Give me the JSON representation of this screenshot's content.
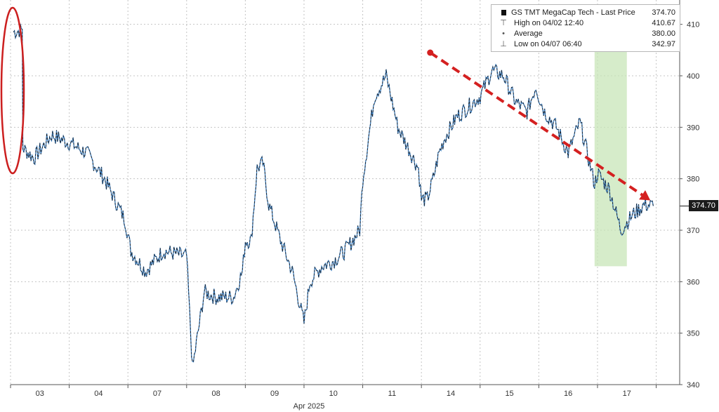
{
  "chart_data": {
    "type": "line",
    "title": "",
    "xlabel": "Apr 2025",
    "ylabel": "",
    "ylim": [
      340,
      412
    ],
    "y_ticks": [
      340,
      350,
      360,
      370,
      380,
      390,
      400,
      410
    ],
    "x_ticks": [
      "03",
      "04",
      "07",
      "08",
      "09",
      "10",
      "11",
      "14",
      "15",
      "16",
      "17"
    ],
    "grid": true,
    "legend_position": "top-right",
    "last_price_label": "374.70",
    "series": [
      {
        "name": "GS TMT MegaCap Tech - Last Price",
        "color": "#1a1a1a",
        "x": [
          0.05,
          0.2,
          0.21,
          0.4,
          0.7,
          1.0,
          1.3,
          1.6,
          1.95,
          2.0,
          2.05,
          2.3,
          2.6,
          2.95,
          3.0,
          3.1,
          3.3,
          3.5,
          3.8,
          3.95,
          4.0,
          4.1,
          4.2,
          4.3,
          4.4,
          4.6,
          4.8,
          5.0,
          5.1,
          5.3,
          5.5,
          5.7,
          5.95,
          6.0,
          6.2,
          6.4,
          6.6,
          6.95,
          7.0,
          7.1,
          7.2,
          7.3,
          7.4,
          7.6,
          7.8,
          8.0,
          8.2,
          8.4,
          8.6,
          8.8,
          8.95,
          9.0,
          9.1,
          9.3,
          9.5,
          9.7,
          9.95,
          10.0,
          10.2,
          10.4,
          10.6,
          10.8,
          10.95
        ],
        "values": [
          408.5,
          409,
          386,
          384,
          388.5,
          387,
          385,
          380,
          372,
          369,
          366,
          362,
          366,
          365,
          365,
          343,
          358,
          357,
          357,
          362,
          368,
          368,
          382,
          383,
          375,
          368,
          362,
          352,
          360,
          363,
          364,
          366,
          370,
          380,
          396,
          400,
          390,
          382,
          376,
          376,
          380,
          385,
          388,
          392,
          394,
          396,
          401,
          400,
          395,
          393,
          398,
          396,
          393,
          390,
          385,
          391,
          379,
          381,
          378,
          370,
          373,
          375,
          374.7
        ],
        "values_note": "dummy"
      }
    ],
    "legend_entries": [
      {
        "label": "GS TMT MegaCap Tech - Last Price",
        "value": "374.70",
        "icon": "black-square"
      },
      {
        "label": "High on 04/02 12:40",
        "value": "410.67",
        "icon": "high-marker"
      },
      {
        "label": "Average",
        "value": "380.00",
        "icon": "average-marker"
      },
      {
        "label": "Low on 04/07 06:40",
        "value": "342.97",
        "icon": "low-marker"
      }
    ],
    "annotations": [
      {
        "type": "ellipse",
        "color": "#cc1f1f",
        "around": "opening gap down on 03"
      },
      {
        "type": "shaded-region",
        "color": "#c8e6b8",
        "x_from": 9.95,
        "x_to": 10.5
      },
      {
        "type": "dashed-arrow",
        "color": "#d42020",
        "from": {
          "x": 7.15,
          "y": 404.5
        },
        "to": {
          "x": 10.9,
          "y": 375.8
        }
      }
    ]
  }
}
